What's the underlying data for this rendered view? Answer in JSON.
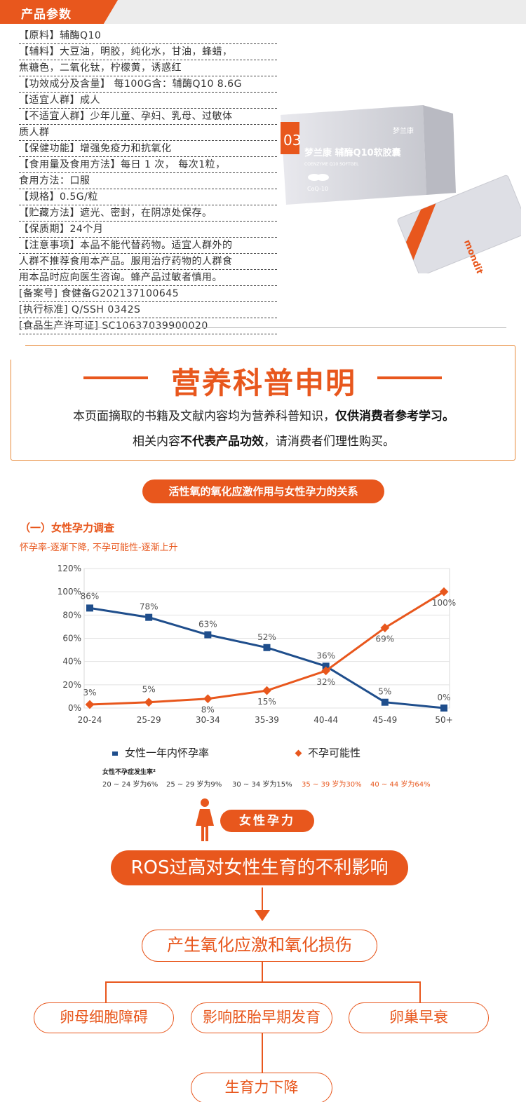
{
  "header": {
    "tab_label": "产品参数"
  },
  "params": [
    "【原料】辅酶Q10",
    "【辅料】大豆油，明胶，纯化水，甘油，蜂蜡，",
    " 焦糖色，二氧化钛，柠檬黄，诱惑红",
    "【功效成分及含量】 每100G含：辅酶Q10 8.6G",
    "【适宜人群】成人",
    "【不适宜人群】少年儿童、孕妇、乳母、过敏体",
    "质人群",
    "【保健功能】增强免疫力和抗氧化",
    "【食用量及食用方法】每日 1 次， 每次1粒，",
    "食用方法：口服",
    "【规格】0.5G/粒",
    "【贮藏方法】遮光、密封，在阴凉处保存。",
    "【保质期】24个月",
    "【注意事项】本品不能代替药物。适宜人群外的",
    "人群不推荐食用本产品。服用治疗药物的人群食",
    "用本品时应向医生咨询。蜂产品过敏者慎用。",
    "[备案号] 食健备G202137100645",
    "[执行标准] Q/SSH 0342S",
    "[食品生产许可证] SC10637039900020"
  ],
  "product": {
    "number": "03",
    "brand_cn": "梦兰康",
    "name": "梦兰康 辅酶Q10软胶囊",
    "sub_name": "COENZYME Q10 SOFTGEL",
    "badge": "CoQ-10",
    "brand_en": "monditang",
    "pack_text": "【保健功能】增强免疫力和抗氧化"
  },
  "notice": {
    "title": "营养科普申明",
    "line1_pre": "本页面摘取的书籍及文献内容均为营养科普知识，",
    "line1_bold": "仅供消费者参考学习。",
    "line2_pre": "相关内容",
    "line2_bold": "不代表产品功效",
    "line2_post": "，请消费者们理性购买。"
  },
  "section": {
    "pill": "活性氧的氧化应激作用与女性孕力的关系",
    "subtitle": "（一）女性孕力调查",
    "desc": "怀孕率-逐渐下降, 不孕可能性-逐渐上升"
  },
  "chart_data": {
    "type": "line",
    "categories": [
      "20-24",
      "25-29",
      "30-34",
      "35-39",
      "40-44",
      "45-49",
      "50+"
    ],
    "ylim": [
      0,
      120
    ],
    "yticks": [
      "0%",
      "20%",
      "40%",
      "60%",
      "80%",
      "100%",
      "120%"
    ],
    "grid": true,
    "series": [
      {
        "name": "女性一年内怀孕率",
        "color": "#1f4e8c",
        "values": [
          86,
          78,
          63,
          52,
          36,
          5,
          0
        ],
        "labels": [
          "86%",
          "78%",
          "63%",
          "52%",
          "36%",
          "5%",
          "0%"
        ]
      },
      {
        "name": "不孕可能性",
        "color": "#e8571d",
        "values": [
          3,
          5,
          8,
          15,
          32,
          69,
          100
        ],
        "labels": [
          "3%",
          "5%",
          "8%",
          "15%",
          "32%",
          "69%",
          "100%"
        ]
      }
    ],
    "legend": "bottom"
  },
  "stats": {
    "title": "女性不孕症发生率²",
    "items": [
      "20 ~ 24 岁为6%",
      "25 ~ 29 岁为9%",
      "30 ~ 34 岁为15%",
      "35 ~ 39 岁为30%",
      "40 ~ 44 岁为64%"
    ]
  },
  "flow": {
    "tag": "女性孕力",
    "main": "ROS过高对女性生育的不利影响",
    "stress": "产生氧化应激和氧化损伤",
    "effects": [
      "卵母细胞障碍",
      "影响胚胎早期发育",
      "卵巢早衰"
    ],
    "result": "生育力下降"
  },
  "colors": {
    "accent": "#e8571d",
    "navy": "#1f4e8c",
    "panel": "#ececec"
  }
}
